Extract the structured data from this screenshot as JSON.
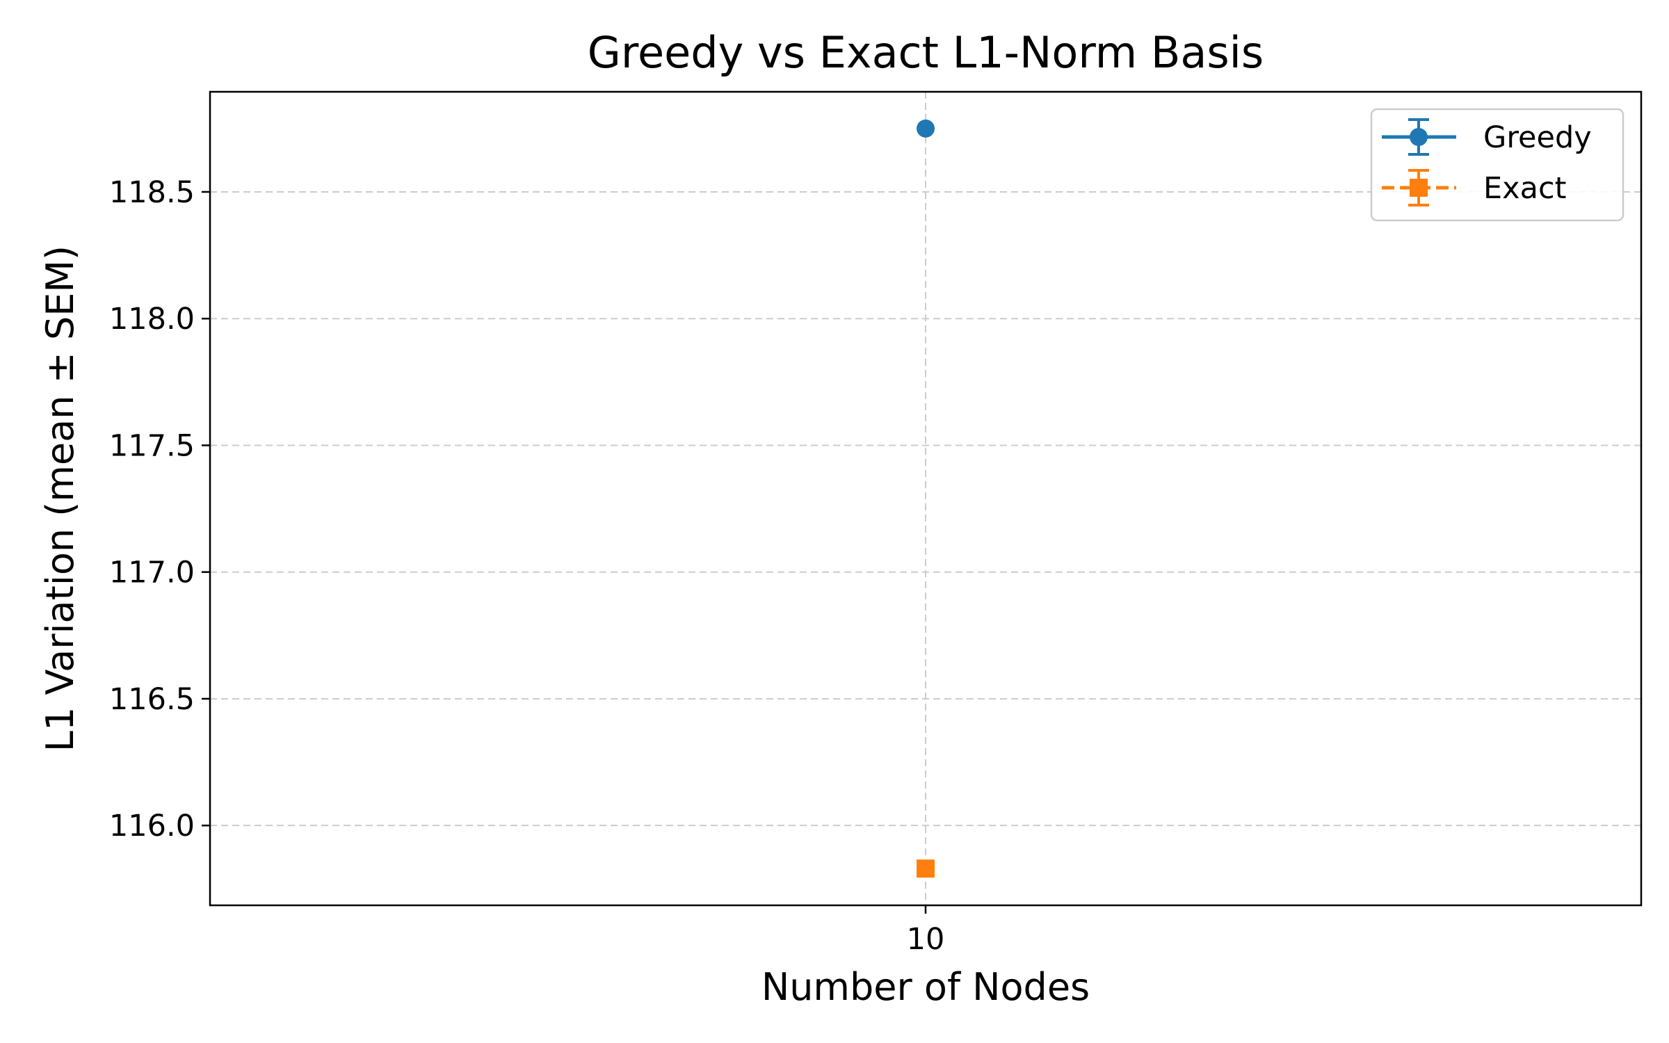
{
  "chart_data": {
    "type": "line",
    "title": "Greedy vs Exact L1-Norm Basis",
    "xlabel": "Number of Nodes",
    "ylabel": "L1 Variation (mean ± SEM)",
    "x": [
      10
    ],
    "x_tick_labels": [
      "10"
    ],
    "y_ticks": [
      116.0,
      116.5,
      117.0,
      117.5,
      118.0,
      118.5
    ],
    "y_tick_labels": [
      "116.0",
      "116.5",
      "117.0",
      "117.5",
      "118.0",
      "118.5"
    ],
    "ylim": [
      115.685,
      118.895
    ],
    "grid": true,
    "legend_position": "top-right",
    "series": [
      {
        "name": "Greedy",
        "values": [
          118.75
        ],
        "sem": [
          0.0
        ],
        "color": "#1f77b4",
        "marker": "circle",
        "line_style": "solid"
      },
      {
        "name": "Exact",
        "values": [
          115.83
        ],
        "sem": [
          0.0
        ],
        "color": "#ff7f0e",
        "marker": "square",
        "line_style": "dashed"
      }
    ]
  }
}
